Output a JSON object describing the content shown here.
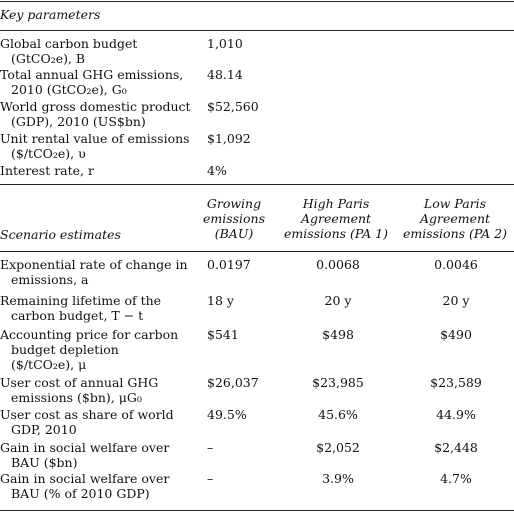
{
  "key_parameters": {
    "heading": "Key parameters",
    "rows": [
      {
        "label": [
          "Global carbon budget",
          "(GtCO₂e), B"
        ],
        "value": "1,010"
      },
      {
        "label": [
          "Total annual GHG emissions,",
          "2010 (GtCO₂e), G₀"
        ],
        "value": "48.14"
      },
      {
        "label": [
          "World gross domestic product",
          "(GDP), 2010 (US$bn)"
        ],
        "value": "$52,560"
      },
      {
        "label": [
          "Unit rental value of emissions",
          "($/tCO₂e), υ"
        ],
        "value": "$1,092"
      },
      {
        "label": [
          "Interest rate, r"
        ],
        "value": "4%"
      }
    ]
  },
  "scenarios": {
    "heading": "Scenario estimates",
    "columns": [
      [
        "Growing",
        "emissions",
        "(BAU)"
      ],
      [
        "High Paris",
        "Agreement",
        "emissions (PA 1)"
      ],
      [
        "Low Paris",
        "Agreement",
        "emissions (PA 2)"
      ]
    ],
    "rows": [
      {
        "label": [
          "Exponential rate of change in",
          "emissions, a"
        ],
        "values": [
          "0.0197",
          "0.0068",
          "0.0046"
        ]
      },
      {
        "label": [
          "Remaining lifetime of the",
          "carbon budget, T − t"
        ],
        "values": [
          "18 y",
          "20 y",
          "20 y"
        ]
      },
      {
        "label": [
          "Accounting price for carbon",
          "budget depletion",
          "($/tCO₂e), μ"
        ],
        "values": [
          "$541",
          "$498",
          "$490"
        ]
      },
      {
        "label": [
          "User cost of annual GHG",
          "emissions ($bn), μG₀"
        ],
        "values": [
          "$26,037",
          "$23,985",
          "$23,589"
        ]
      },
      {
        "label": [
          "User cost as share of world",
          "GDP, 2010"
        ],
        "values": [
          "49.5%",
          "45.6%",
          "44.9%"
        ]
      },
      {
        "label": [
          "Gain in social welfare over",
          "BAU ($bn)"
        ],
        "values": [
          "–",
          "$2,052",
          "$2,448"
        ]
      },
      {
        "label": [
          "Gain in social welfare over",
          "BAU (% of 2010 GDP)"
        ],
        "values": [
          "–",
          "3.9%",
          "4.7%"
        ]
      }
    ]
  }
}
